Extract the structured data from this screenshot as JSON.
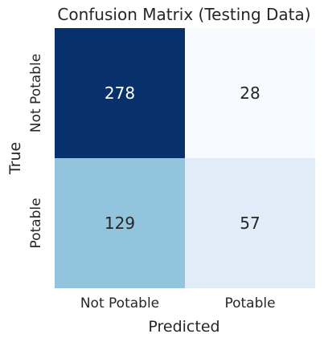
{
  "chart_data": {
    "type": "heatmap",
    "title": "Confusion Matrix (Testing Data)",
    "xlabel": "Predicted",
    "ylabel": "True",
    "x_categories": [
      "Not Potable",
      "Potable"
    ],
    "y_categories": [
      "Not Potable",
      "Potable"
    ],
    "values": [
      [
        278,
        28
      ],
      [
        129,
        57
      ]
    ],
    "colormap": "Blues",
    "colorbar": false,
    "annotations": true
  }
}
